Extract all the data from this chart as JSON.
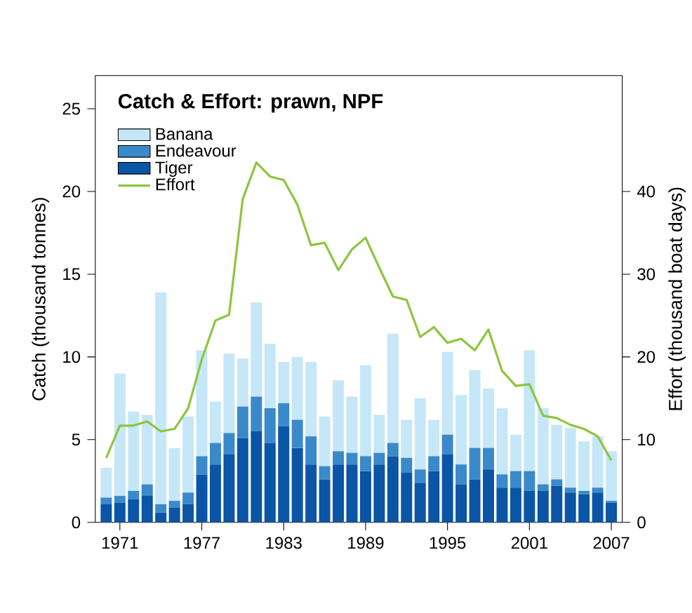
{
  "chart_data": {
    "type": "bar",
    "title": "Catch & Effort: prawn, NPF",
    "ylabel": "Catch (thousand tonnes)",
    "y2label": "Effort (thousand boat days)",
    "x": [
      1970,
      1971,
      1972,
      1973,
      1974,
      1975,
      1976,
      1977,
      1978,
      1979,
      1980,
      1981,
      1982,
      1983,
      1984,
      1985,
      1986,
      1987,
      1988,
      1989,
      1990,
      1991,
      1992,
      1993,
      1994,
      1995,
      1996,
      1997,
      1998,
      1999,
      2000,
      2001,
      2002,
      2003,
      2004,
      2005,
      2006,
      2007
    ],
    "xlim": [
      1969.2,
      2007.8
    ],
    "xticks": [
      1971,
      1977,
      1983,
      1989,
      1995,
      2001,
      2007
    ],
    "ylim": [
      0,
      27
    ],
    "yticks": [
      0,
      5,
      10,
      15,
      20,
      25
    ],
    "y2lim": [
      0,
      54
    ],
    "y2ticks": [
      0,
      10,
      20,
      30,
      40
    ],
    "stacked": true,
    "legend": "top left",
    "series": [
      {
        "name": "Tiger",
        "color": "#0b55a6",
        "values": [
          1.1,
          1.2,
          1.4,
          1.6,
          0.6,
          0.9,
          1.1,
          2.9,
          3.5,
          4.1,
          5.1,
          5.5,
          4.8,
          5.8,
          4.5,
          3.5,
          2.6,
          3.5,
          3.5,
          3.1,
          3.5,
          4.0,
          3.0,
          2.4,
          3.1,
          4.1,
          2.3,
          2.6,
          3.2,
          2.1,
          2.1,
          1.9,
          1.9,
          2.2,
          1.8,
          1.7,
          1.8,
          1.2
        ]
      },
      {
        "name": "Endeavour",
        "color": "#3a8acb",
        "values": [
          0.4,
          0.4,
          0.5,
          0.7,
          0.5,
          0.4,
          0.7,
          1.1,
          1.3,
          1.3,
          1.9,
          2.1,
          2.1,
          1.4,
          1.7,
          1.7,
          0.8,
          0.8,
          0.7,
          0.9,
          0.7,
          0.8,
          0.9,
          0.8,
          0.9,
          1.2,
          1.2,
          1.9,
          1.3,
          0.8,
          1.0,
          1.2,
          0.4,
          0.4,
          0.3,
          0.2,
          0.3,
          0.1
        ]
      },
      {
        "name": "Banana",
        "color": "#c6e7f7",
        "values": [
          1.8,
          7.4,
          4.8,
          4.2,
          12.8,
          3.2,
          4.6,
          6.4,
          2.5,
          4.8,
          2.9,
          5.7,
          3.9,
          2.5,
          3.8,
          4.5,
          3.0,
          4.3,
          3.4,
          5.5,
          2.3,
          6.6,
          2.3,
          4.3,
          2.2,
          5.0,
          4.2,
          4.7,
          3.6,
          4.0,
          2.2,
          7.3,
          4.6,
          3.3,
          3.6,
          3.0,
          3.1,
          3.0
        ]
      },
      {
        "name": "Effort",
        "type": "line",
        "axis": "y2",
        "color": "#8cc63f",
        "values": [
          7.8,
          11.7,
          11.7,
          12.2,
          11.0,
          11.3,
          13.8,
          19.7,
          24.4,
          25.1,
          39.1,
          43.5,
          41.8,
          41.4,
          38.4,
          33.5,
          33.8,
          30.5,
          33.0,
          34.4,
          30.8,
          27.3,
          26.9,
          22.4,
          23.6,
          21.7,
          22.2,
          20.8,
          23.3,
          18.3,
          16.5,
          16.7,
          12.9,
          12.6,
          11.8,
          11.3,
          10.4,
          7.5
        ]
      }
    ]
  }
}
